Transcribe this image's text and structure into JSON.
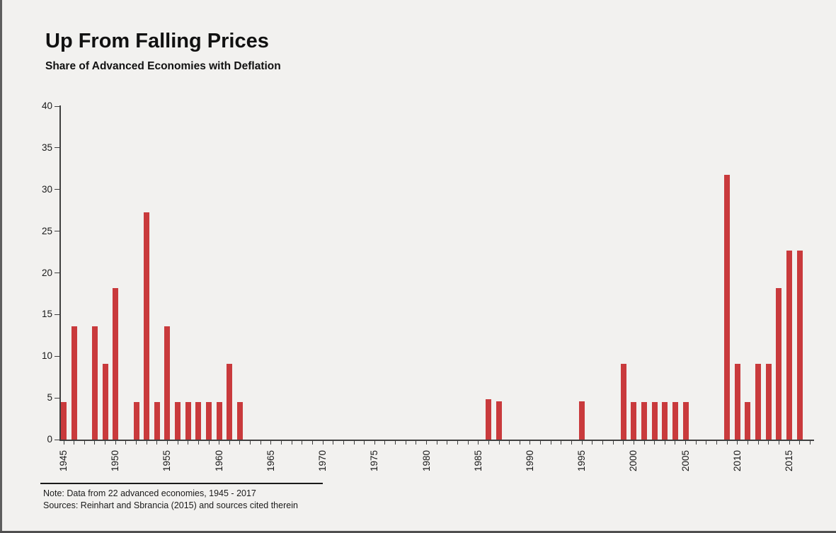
{
  "page": {
    "background_color": "#f2f1ef",
    "edge_line_color": "#4f4f4f"
  },
  "header": {
    "title": "Up From Falling Prices",
    "subtitle": "Share of Advanced Economies with Deflation"
  },
  "footer": {
    "note": "Note: Data from 22 advanced economies, 1945 - 2017",
    "sources": "Sources: Reinhart and Sbrancia (2015) and sources cited therein"
  },
  "chart_data": {
    "type": "bar",
    "title": "Up From Falling Prices",
    "subtitle": "Share of Advanced Economies with Deflation",
    "xlabel": "",
    "ylabel": "",
    "ylim": [
      0,
      40
    ],
    "y_ticks": [
      0,
      5,
      10,
      15,
      20,
      25,
      30,
      35,
      40
    ],
    "x_first_year": 1945,
    "x_last_year": 2017,
    "x_tick_every_years": 1,
    "x_label_every_years": 5,
    "x_label_rotation_deg": -90,
    "grid": "off",
    "legend": "none",
    "bar_color": "#c93a3c",
    "axis_color": "#3f3f3f",
    "units": "percent share of economies",
    "points": [
      [
        1945,
        4.5
      ],
      [
        1946,
        13.6
      ],
      [
        1948,
        13.6
      ],
      [
        1949,
        9.1
      ],
      [
        1950,
        18.2
      ],
      [
        1952,
        4.5
      ],
      [
        1953,
        27.3
      ],
      [
        1954,
        4.5
      ],
      [
        1955,
        13.6
      ],
      [
        1956,
        4.5
      ],
      [
        1957,
        4.5
      ],
      [
        1958,
        4.5
      ],
      [
        1959,
        4.5
      ],
      [
        1960,
        4.5
      ],
      [
        1961,
        9.1
      ],
      [
        1962,
        4.5
      ],
      [
        1986,
        4.8
      ],
      [
        1987,
        4.6
      ],
      [
        1995,
        4.6
      ],
      [
        1999,
        9.1
      ],
      [
        2000,
        4.5
      ],
      [
        2001,
        4.5
      ],
      [
        2002,
        4.5
      ],
      [
        2003,
        4.5
      ],
      [
        2004,
        4.5
      ],
      [
        2005,
        4.5
      ],
      [
        2009,
        31.8
      ],
      [
        2010,
        9.1
      ],
      [
        2011,
        4.5
      ],
      [
        2012,
        9.1
      ],
      [
        2013,
        9.1
      ],
      [
        2014,
        18.2
      ],
      [
        2015,
        22.7
      ],
      [
        2016,
        22.7
      ]
    ],
    "years_not_listed_value": 0
  }
}
